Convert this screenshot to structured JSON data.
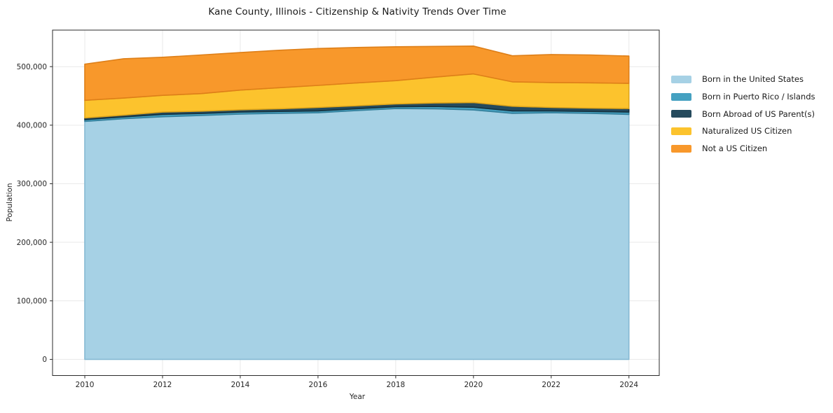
{
  "title": "Kane County, Illinois - Citizenship & Nativity Trends Over Time",
  "chart_data": {
    "type": "area",
    "stacked": true,
    "title": "Kane County, Illinois - Citizenship & Nativity Trends Over Time",
    "xlabel": "Year",
    "ylabel": "Population",
    "grid": true,
    "legend_position": "right",
    "xlim": [
      2009.17,
      2024.78
    ],
    "ylim": [
      -27600,
      562400
    ],
    "x_ticks": [
      2010,
      2012,
      2014,
      2016,
      2018,
      2020,
      2022,
      2024
    ],
    "y_ticks": [
      0,
      100000,
      200000,
      300000,
      400000,
      500000
    ],
    "y_tick_labels": [
      "0",
      "100,000",
      "200,000",
      "300,000",
      "400,000",
      "500,000"
    ],
    "x": [
      2010,
      2011,
      2012,
      2013,
      2014,
      2015,
      2016,
      2017,
      2018,
      2019,
      2020,
      2021,
      2022,
      2023,
      2024
    ],
    "series": [
      {
        "name": "Born in the United States",
        "color": "#a6d1e5",
        "edge": "#86b9d3",
        "values": [
          406400,
          411000,
          414400,
          416500,
          419100,
          420200,
          421200,
          425000,
          428400,
          428000,
          426000,
          420300,
          421200,
          420300,
          418400
        ]
      },
      {
        "name": "Born in Puerto Rico / Islands",
        "color": "#45a1c1",
        "edge": "#35809c",
        "values": [
          3100,
          3300,
          4000,
          3500,
          3300,
          3300,
          3200,
          3200,
          3200,
          4000,
          4600,
          4100,
          3200,
          3200,
          4000
        ]
      },
      {
        "name": "Born Abroad of US Parent(s)",
        "color": "#254a5d",
        "edge": "#16323f",
        "values": [
          2900,
          3000,
          4000,
          4000,
          4000,
          4500,
          5900,
          5000,
          4700,
          6000,
          8200,
          7900,
          5900,
          5600,
          6000
        ]
      },
      {
        "name": "Naturalized US Citizen",
        "color": "#fcc32d",
        "edge": "#dfa51a",
        "values": [
          30100,
          29000,
          28600,
          30000,
          33600,
          36000,
          37700,
          39000,
          39800,
          44000,
          48800,
          41800,
          42600,
          43300,
          43000
        ]
      },
      {
        "name": "Not a US Citizen",
        "color": "#f8982b",
        "edge": "#de7f18",
        "values": [
          61700,
          67200,
          65000,
          66000,
          64000,
          64000,
          63000,
          60500,
          57900,
          52500,
          47500,
          44400,
          47800,
          47500,
          46600
        ]
      }
    ],
    "plot_colors": {
      "grid": "#e9e9e9",
      "spine": "#2b2b2b",
      "background": "#ffffff"
    }
  }
}
